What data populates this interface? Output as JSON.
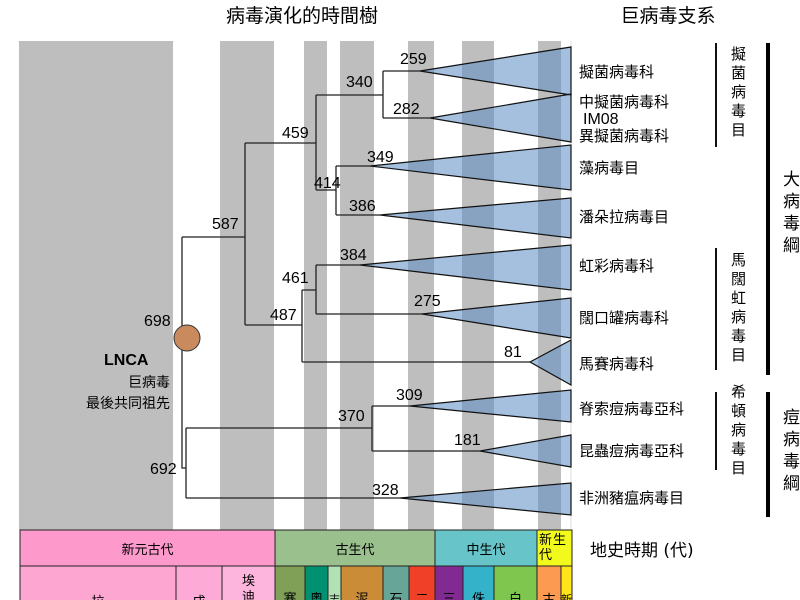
{
  "title": "病毒演化的時間樹",
  "clade_header": "巨病毒支系",
  "root": {
    "node": "698",
    "name": "LNCA",
    "desc1": "巨病毒",
    "desc2": "最後共同祖先"
  },
  "nodes": [
    "587",
    "459",
    "340",
    "259",
    "282",
    "414",
    "349",
    "386",
    "487",
    "461",
    "384",
    "275",
    "81",
    "692",
    "370",
    "309",
    "181",
    "328"
  ],
  "taxa": [
    "擬菌病毒科",
    "中擬菌病毒科",
    "IM08",
    "異擬菌病毒科",
    "藻病毒目",
    "潘朵拉病毒目",
    "虹彩病毒科",
    "闊口罐病毒科",
    "馬賽病毒科",
    "脊索痘病毒亞科",
    "昆蟲痘病毒亞科",
    "非洲豬瘟病毒目"
  ],
  "orders": [
    "擬菌病毒目",
    "馬闊虹病毒目",
    "希頓病毒目"
  ],
  "classes": [
    "大病毒綱",
    "痘病毒綱"
  ],
  "timescale": {
    "label": "地史時期 (代)",
    "eras": [
      {
        "name": "新元古代",
        "color": "#fe99cc"
      },
      {
        "name": "古生代",
        "color": "#99c08d"
      },
      {
        "name": "中生代",
        "color": "#67c5ca"
      },
      {
        "name": "新生代",
        "color": "#f2f91d"
      }
    ],
    "periods": [
      {
        "name": "拉",
        "color": "#fea6d2"
      },
      {
        "name": "成",
        "color": "#feaad6"
      },
      {
        "name": "埃迪",
        "color": "#fdb5dd"
      },
      {
        "name": "寒",
        "color": "#7fa056"
      },
      {
        "name": "奧",
        "color": "#009270"
      },
      {
        "name": "志",
        "color": "#b3e1b6"
      },
      {
        "name": "泥",
        "color": "#cb8c37"
      },
      {
        "name": "石",
        "color": "#67a599"
      },
      {
        "name": "二",
        "color": "#f04028"
      },
      {
        "name": "三",
        "color": "#812b92"
      },
      {
        "name": "侏",
        "color": "#34b2c9"
      },
      {
        "name": "白",
        "color": "#7fc64e"
      },
      {
        "name": "古",
        "color": "#fd9a52"
      },
      {
        "name": "新",
        "color": "#ffe619"
      }
    ]
  },
  "colors": {
    "band": "#bebebe",
    "triangle": "rgba(90,140,195,0.55)",
    "root": "#c98a5e"
  }
}
